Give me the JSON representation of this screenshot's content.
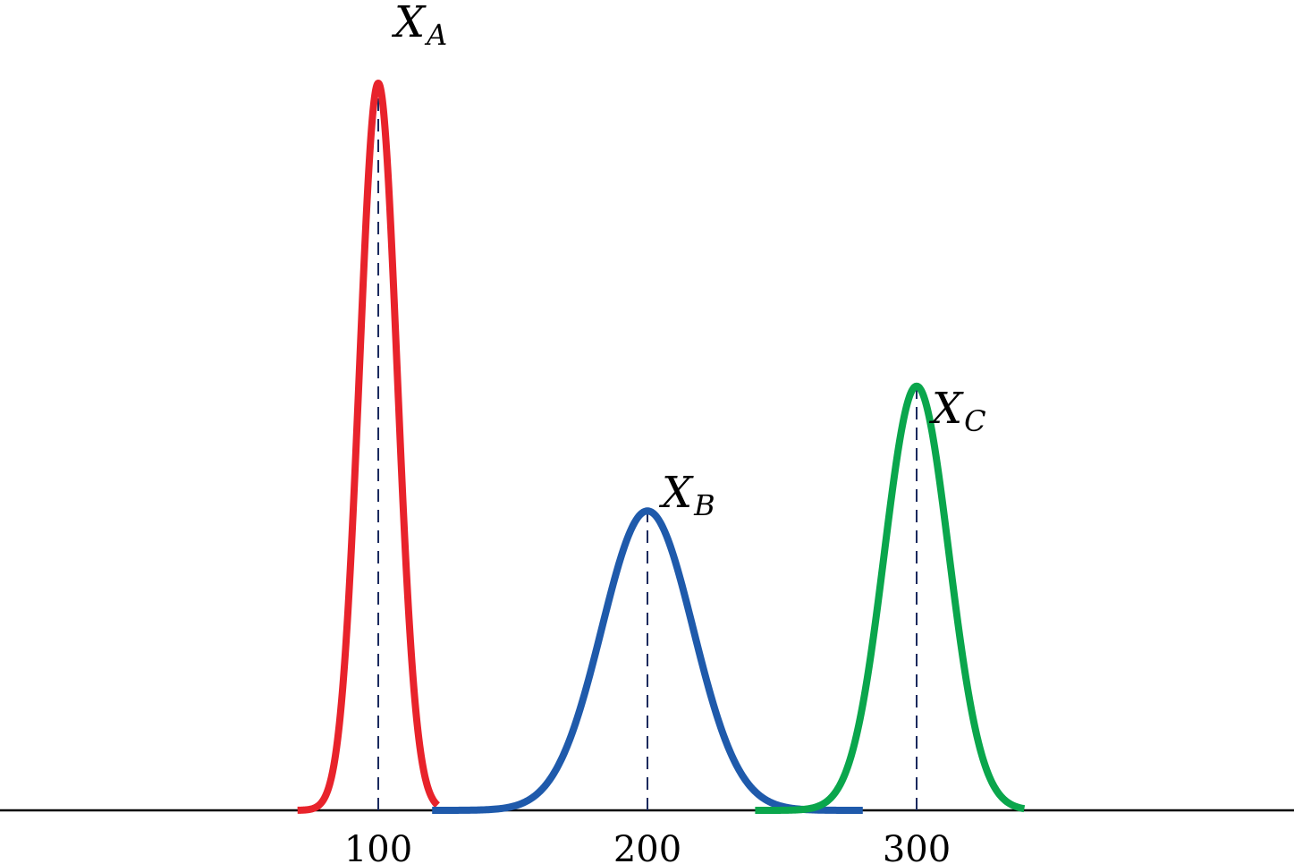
{
  "chart_data": {
    "type": "line",
    "title": "",
    "xlabel": "",
    "ylabel": "",
    "grid": false,
    "legend": "none",
    "x_ticks": [
      "100",
      "200",
      "300"
    ],
    "series": [
      {
        "name": "X_A",
        "label_main": "X",
        "label_sub": "A",
        "mean": 100,
        "sd": 7,
        "x_min": 70,
        "x_max": 122,
        "color": "#e8232b"
      },
      {
        "name": "X_B",
        "label_main": "X",
        "label_sub": "B",
        "mean": 200,
        "sd": 17,
        "x_min": 120,
        "x_max": 280,
        "color": "#1f5aab"
      },
      {
        "name": "X_C",
        "label_main": "X",
        "label_sub": "C",
        "mean": 300,
        "sd": 12,
        "x_min": 240,
        "x_max": 340,
        "color": "#0aa64c"
      }
    ]
  }
}
